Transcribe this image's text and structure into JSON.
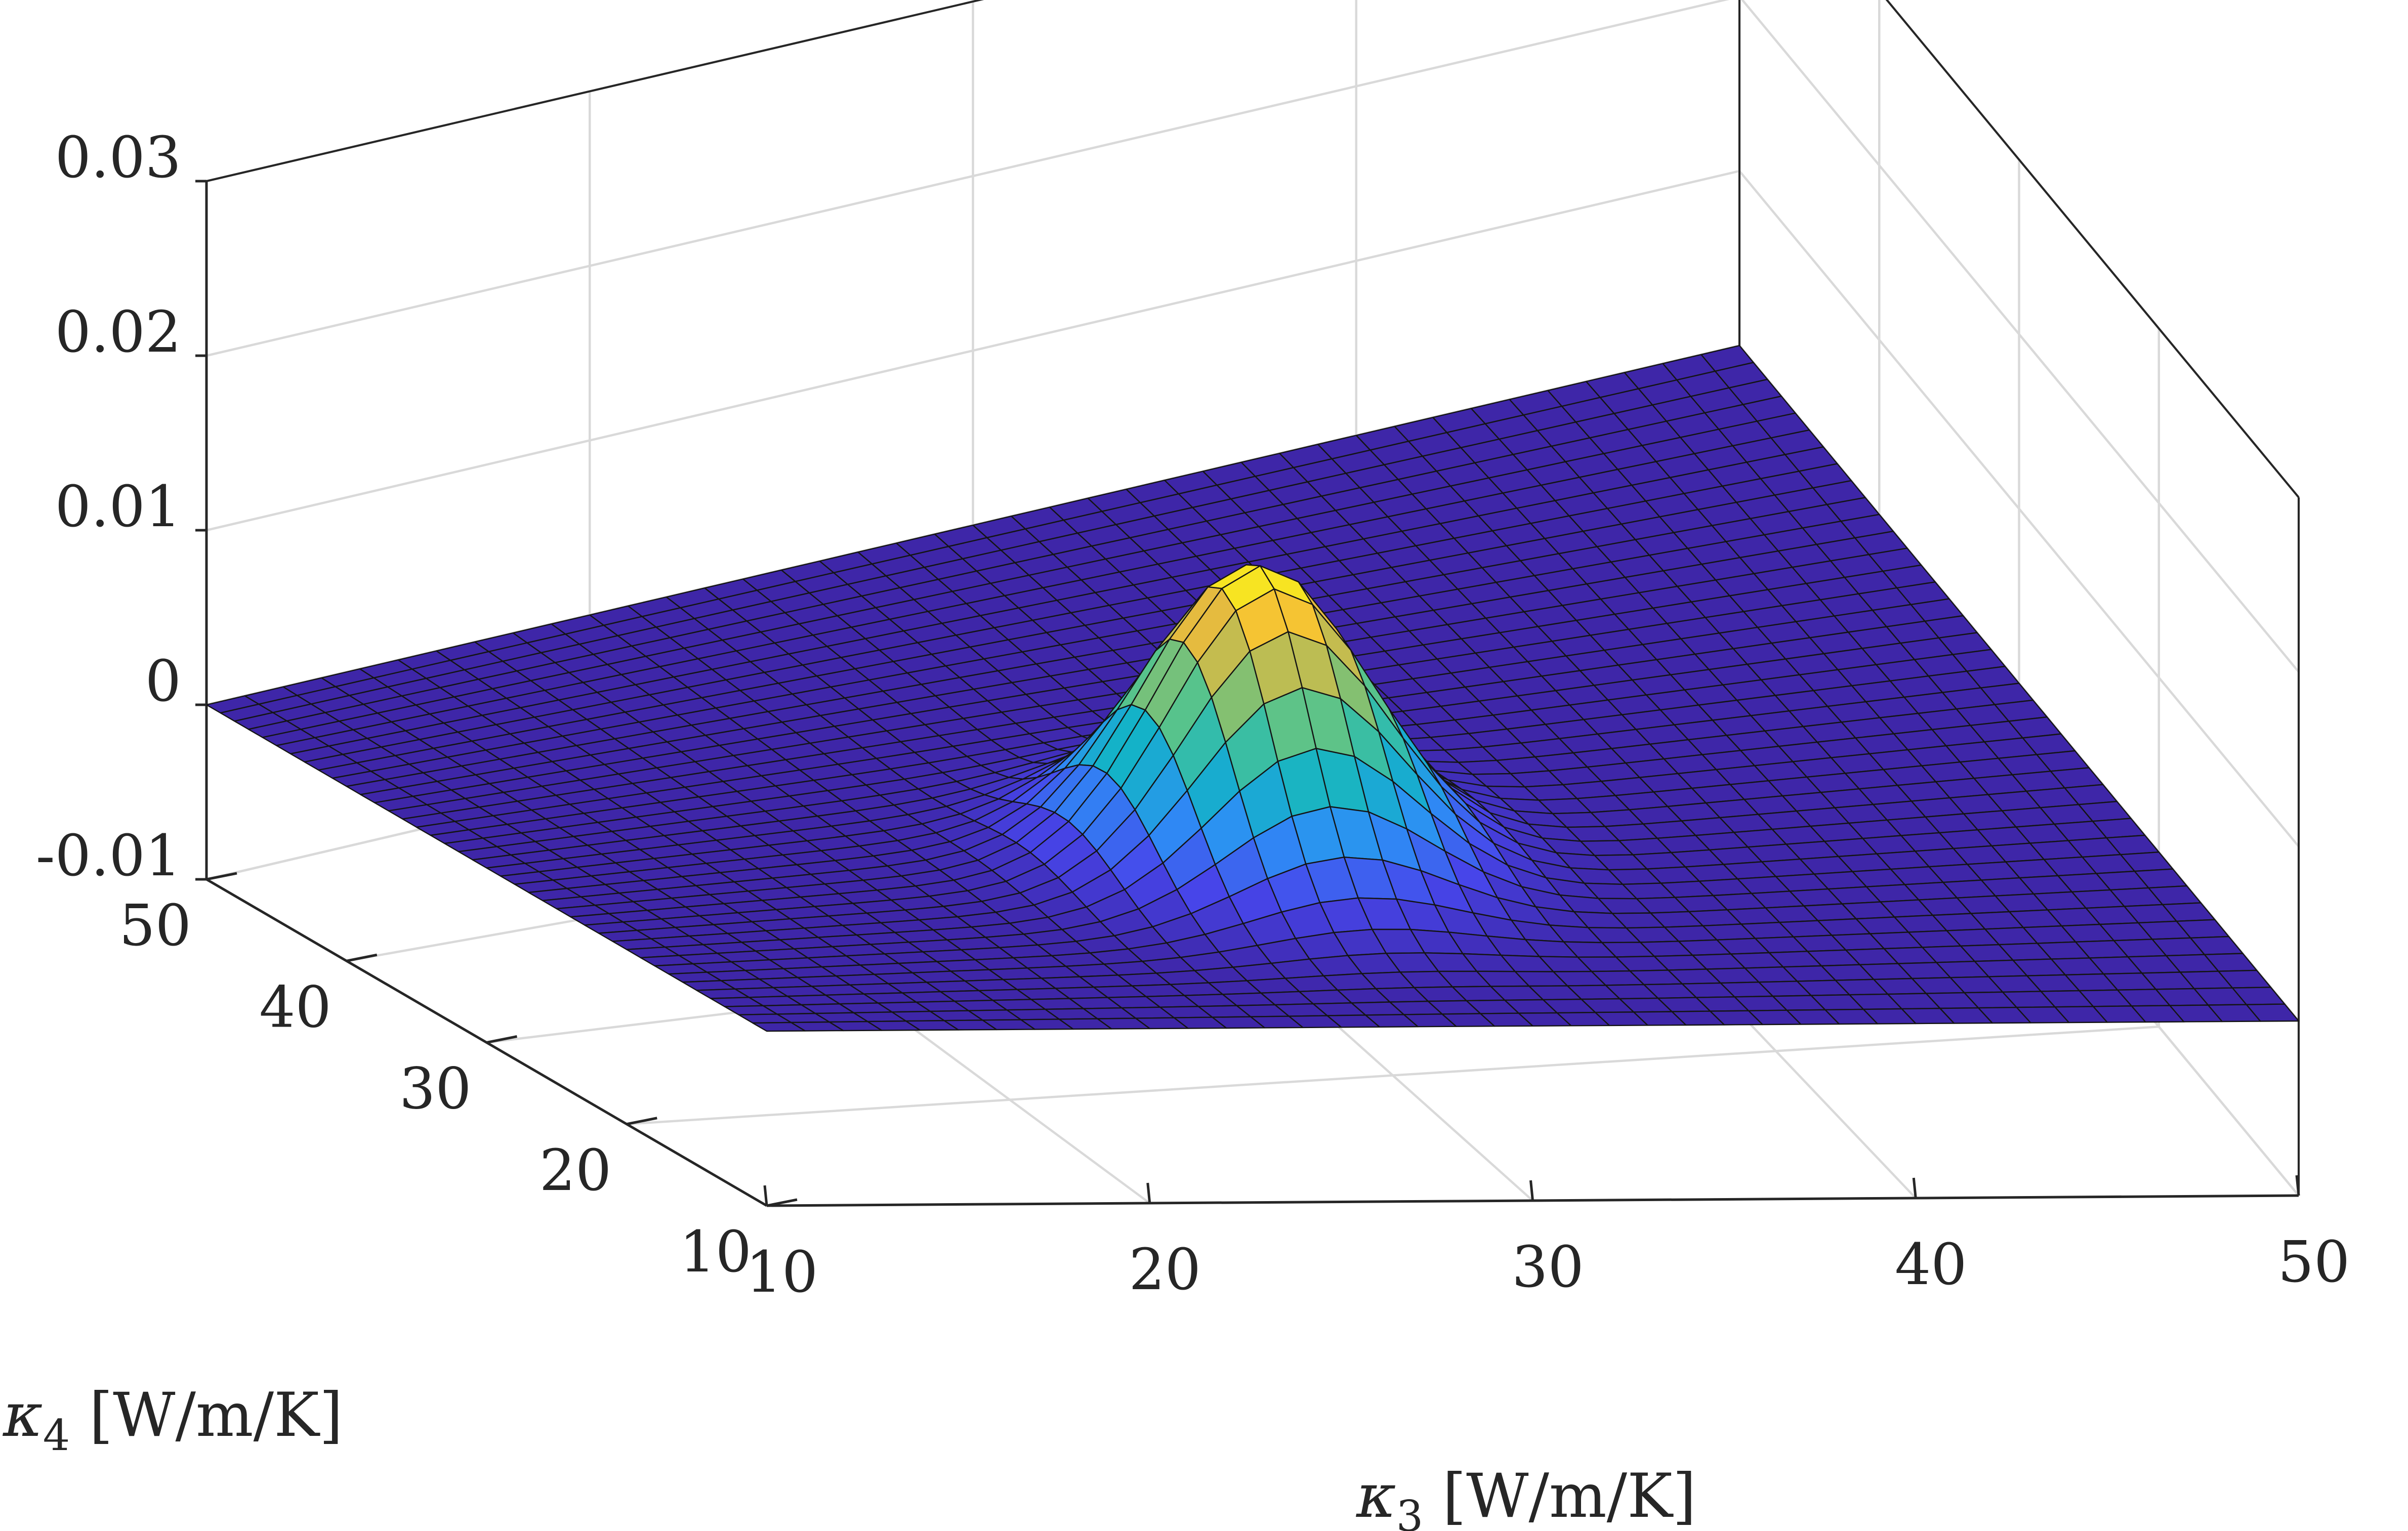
{
  "chart_data": {
    "type": "surface",
    "title": "",
    "xlabel": "κ3 [W/m/K]",
    "ylabel": "κ4 [W/m/K]",
    "zlabel": "",
    "x_label_parts": {
      "symbol": "κ",
      "subscript": "3",
      "unit": "[W/m/K]"
    },
    "y_label_parts": {
      "symbol": "κ",
      "subscript": "4",
      "unit": "[W/m/K]"
    },
    "xlim": [
      10,
      50
    ],
    "ylim": [
      10,
      50
    ],
    "zlim": [
      -0.01,
      0.03
    ],
    "x_ticks": [
      "10",
      "20",
      "30",
      "40",
      "50"
    ],
    "y_ticks": [
      "10",
      "20",
      "30",
      "40",
      "50"
    ],
    "z_ticks": [
      "-0.01",
      "0",
      "0.01",
      "0.02",
      "0.03"
    ],
    "grid": true,
    "box": true,
    "colormap": "parula",
    "colormap_stops": [
      "#3e26a8",
      "#4746eb",
      "#2d8ff5",
      "#14b2c8",
      "#4bc493",
      "#a5be5e",
      "#f4ba38",
      "#f9fb15"
    ],
    "surface": {
      "function": "gaussian",
      "peak_x": 28,
      "peak_y": 24,
      "peak_z": 0.0167,
      "sigma_x": 2.7,
      "sigma_y": 3.6,
      "grid_points_x": 41,
      "grid_points_y": 41
    }
  }
}
